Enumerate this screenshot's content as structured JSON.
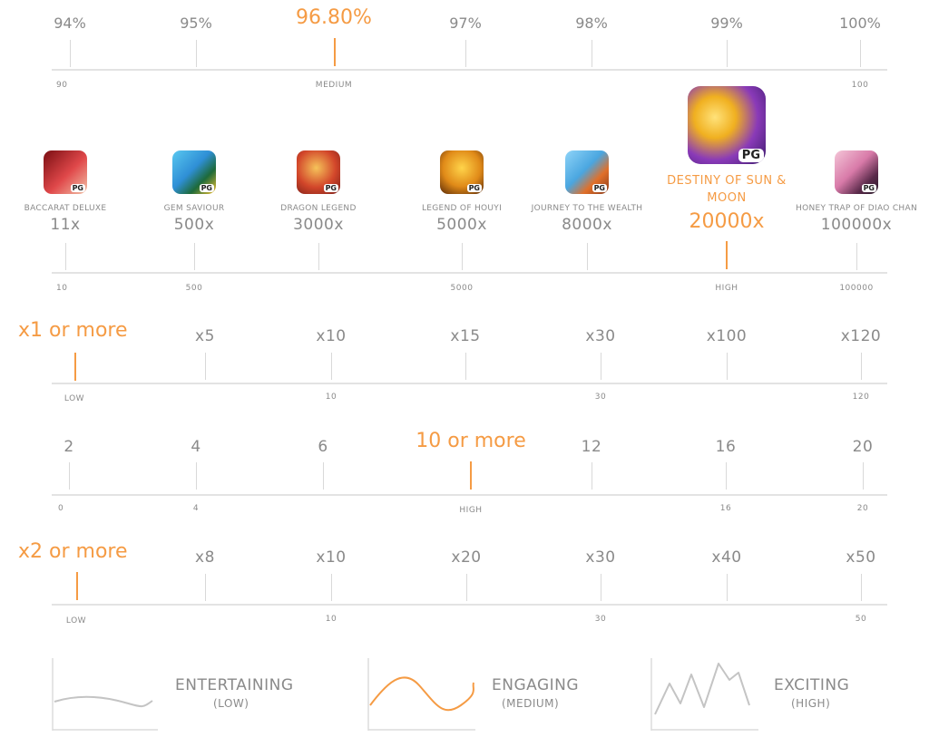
{
  "rtp": {
    "labels": [
      "94%",
      "95%",
      "96.80%",
      "97%",
      "98%",
      "99%",
      "100%"
    ],
    "scale": [
      "90",
      "MEDIUM",
      "100"
    ]
  },
  "max_win": {
    "games": [
      {
        "name": "BACCARAT DELUXE",
        "mult": "11x",
        "icon": "baccarat-deluxe-icon"
      },
      {
        "name": "GEM SAVIOUR",
        "mult": "500x",
        "icon": "gem-saviour-icon"
      },
      {
        "name": "DRAGON LEGEND",
        "mult": "3000x",
        "icon": "dragon-legend-icon"
      },
      {
        "name": "LEGEND OF HOUYI",
        "mult": "5000x",
        "icon": "legend-of-houyi-icon"
      },
      {
        "name": "JOURNEY TO THE WEALTH",
        "mult": "8000x",
        "icon": "journey-to-the-wealth-icon"
      },
      {
        "name": "DESTINY OF SUN & MOON",
        "mult": "20000x",
        "icon": "destiny-of-sun-and-moon-icon"
      },
      {
        "name": "HONEY TRAP OF DIAO CHAN",
        "mult": "100000x",
        "icon": "honey-trap-of-diao-chan-icon"
      }
    ],
    "badge": "PG",
    "scale": [
      "10",
      "500",
      "5000",
      "HIGH",
      "100000"
    ]
  },
  "row3": {
    "labels": [
      "x1 or more",
      "x5",
      "x10",
      "x15",
      "x30",
      "x100",
      "x120"
    ],
    "scale": [
      "LOW",
      "10",
      "30",
      "120"
    ]
  },
  "row4": {
    "labels": [
      "2",
      "4",
      "6",
      "10 or more",
      "12",
      "16",
      "20"
    ],
    "scale": [
      "0",
      "4",
      "HIGH",
      "16",
      "20"
    ]
  },
  "row5": {
    "labels": [
      "x2 or more",
      "x8",
      "x10",
      "x20",
      "x30",
      "x40",
      "x50"
    ],
    "scale": [
      "LOW",
      "10",
      "30",
      "50"
    ]
  },
  "volatility": [
    {
      "title": "ENTERTAINING",
      "sub": "(LOW)"
    },
    {
      "title": "ENGAGING",
      "sub": "(MEDIUM)"
    },
    {
      "title": "EXCITING",
      "sub": "(HIGH)"
    }
  ],
  "colors": {
    "accent": "#f59b44",
    "text": "#8a8a8a",
    "line": "#e3e3e3"
  }
}
